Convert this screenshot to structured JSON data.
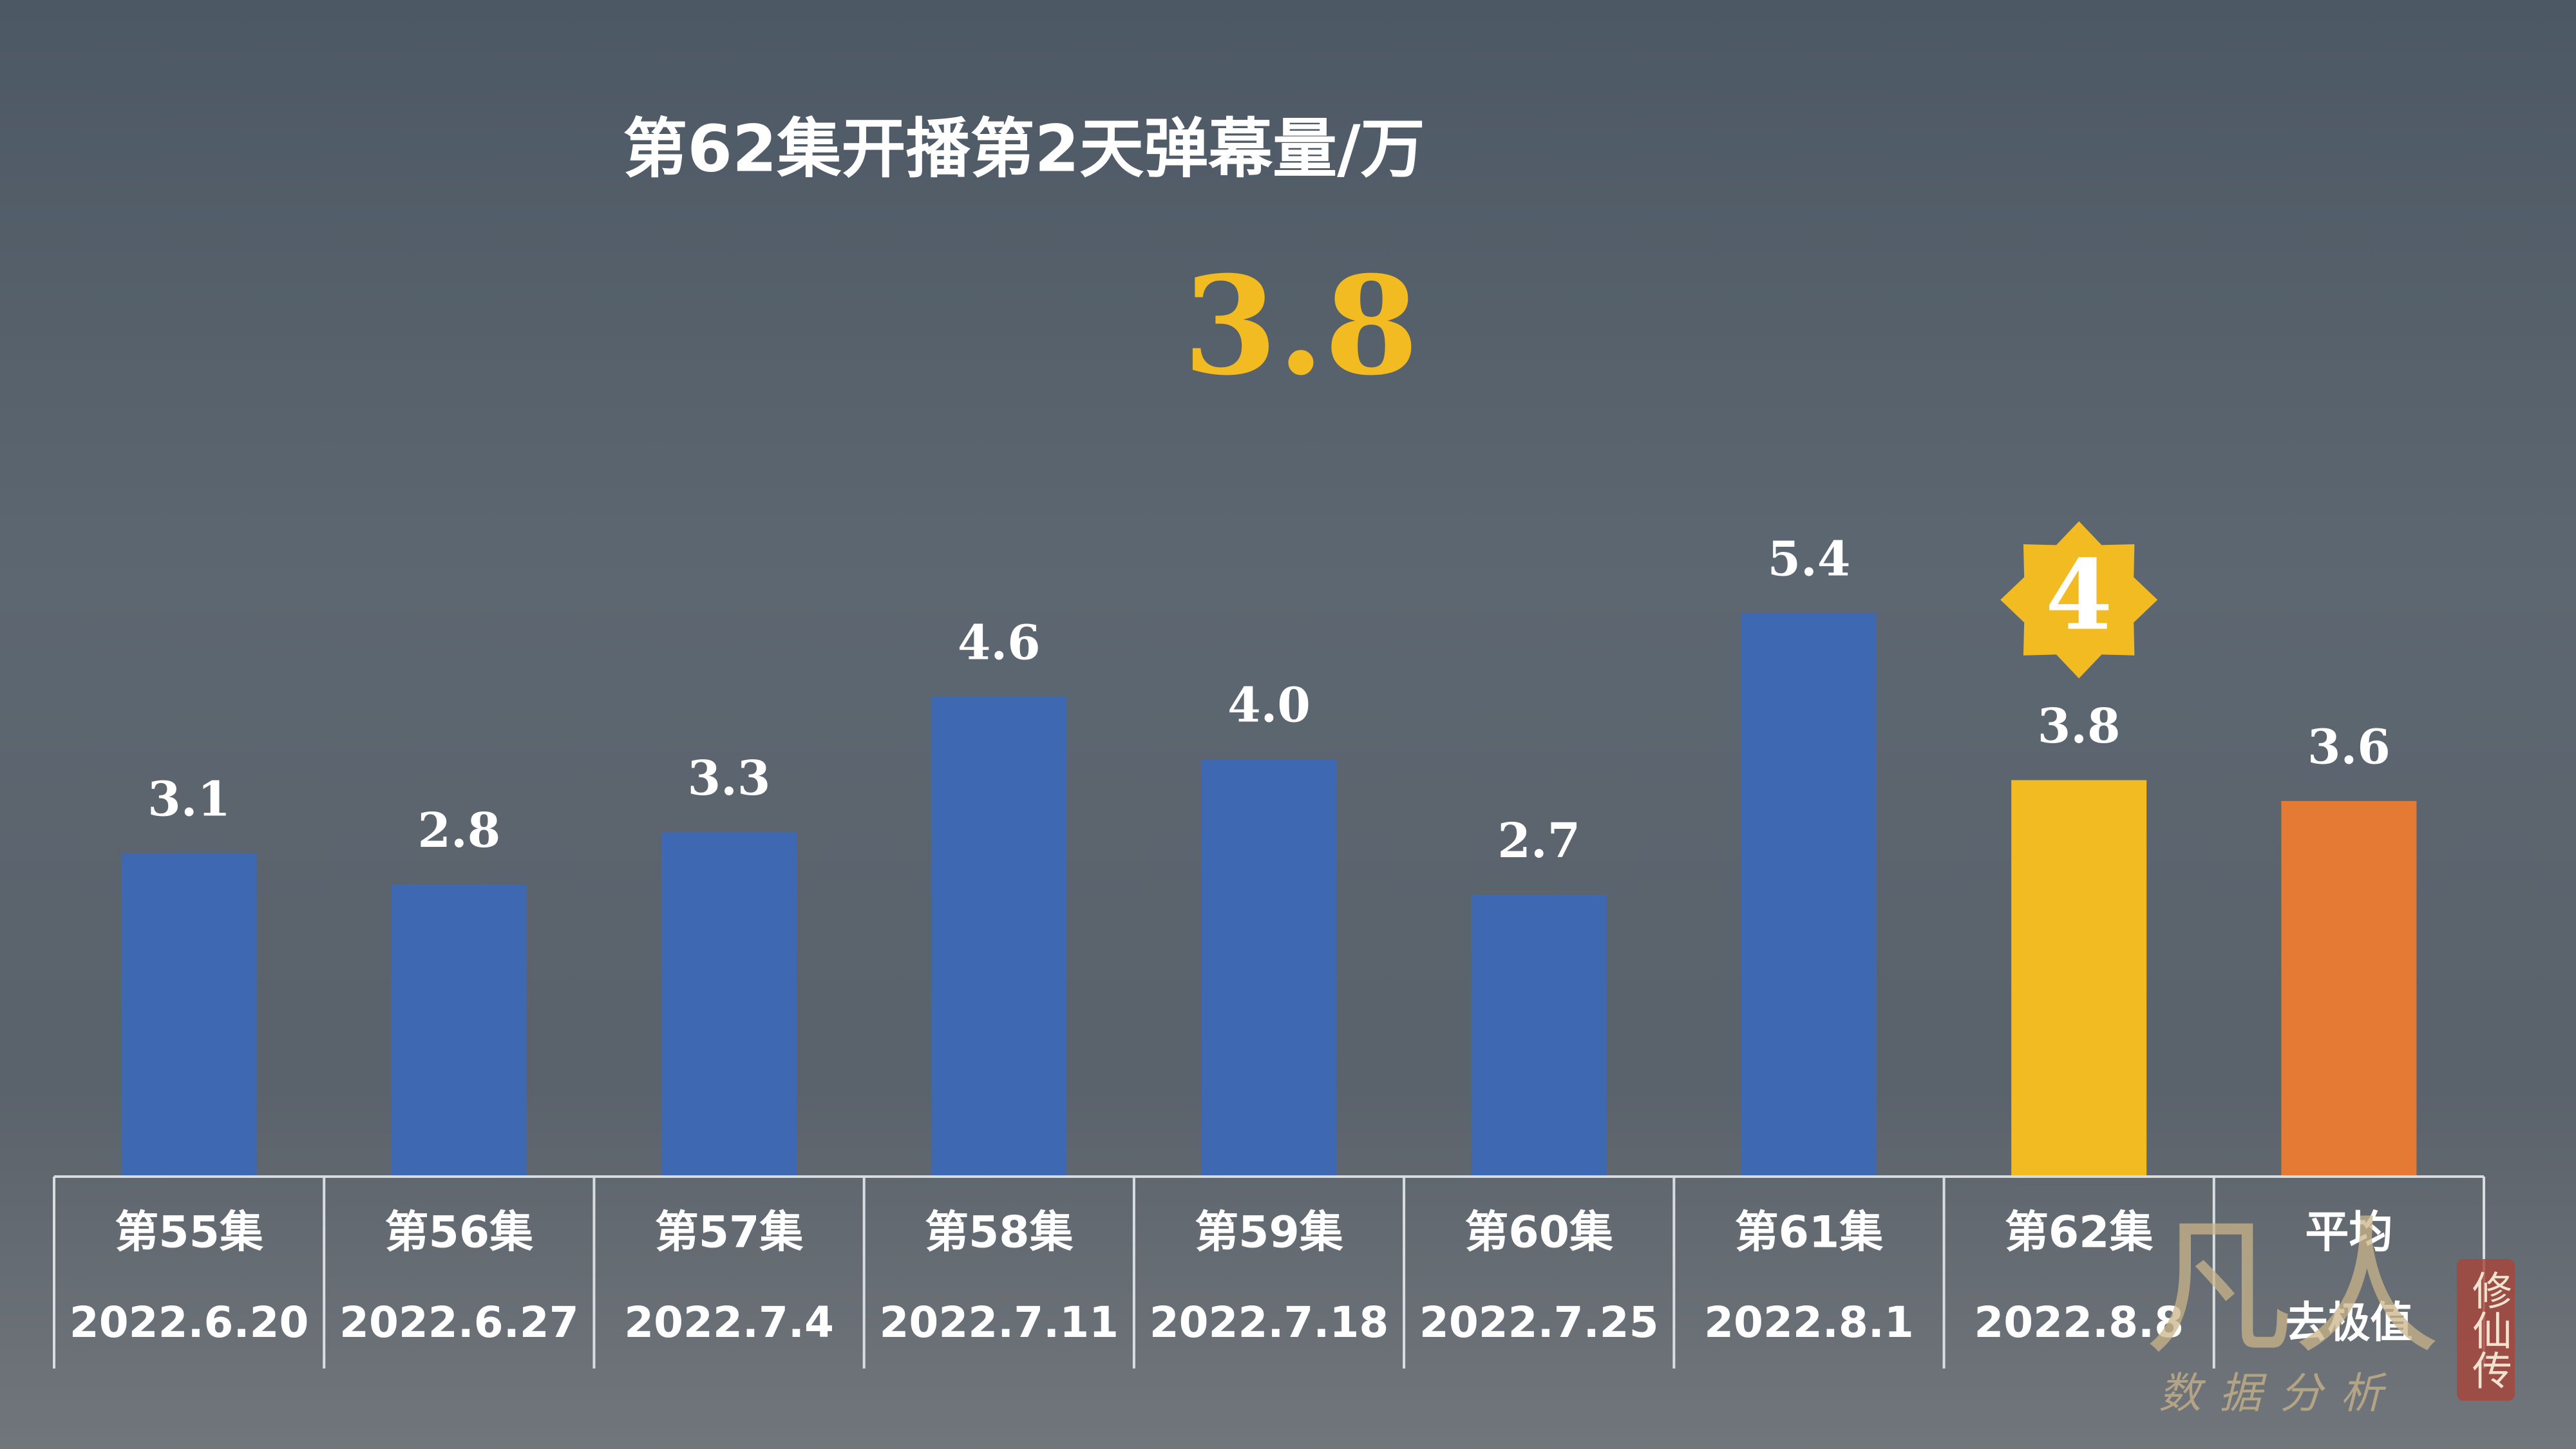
{
  "chart_data": {
    "type": "bar",
    "title": "第62集开播第2天弹幕量/万",
    "headline_value": 3.8,
    "categories": [
      "第55集",
      "第56集",
      "第57集",
      "第58集",
      "第59集",
      "第60集",
      "第61集",
      "第62集",
      "平均"
    ],
    "category_sublabels": [
      "2022.6.20",
      "2022.6.27",
      "2022.7.4",
      "2022.7.11",
      "2022.7.18",
      "2022.7.25",
      "2022.8.1",
      "2022.8.8",
      "去极值"
    ],
    "values": [
      3.1,
      2.8,
      3.3,
      4.6,
      4.0,
      2.7,
      5.4,
      3.8,
      3.6
    ],
    "value_labels": [
      "3.1",
      "2.8",
      "3.3",
      "4.6",
      "4.0",
      "2.7",
      "5.4",
      "3.8",
      "3.6"
    ],
    "colors": [
      "#3f68b2",
      "#3f68b2",
      "#3f68b2",
      "#3f68b2",
      "#3f68b2",
      "#3f68b2",
      "#3f68b2",
      "#f3bb22",
      "#e47a34"
    ],
    "ylim": [
      0,
      6
    ],
    "badge": {
      "category_index": 7,
      "text": "4",
      "color": "#f3bb22"
    },
    "watermark": {
      "main": "凡人",
      "seal": "修仙传",
      "caption": "数据分析"
    }
  }
}
